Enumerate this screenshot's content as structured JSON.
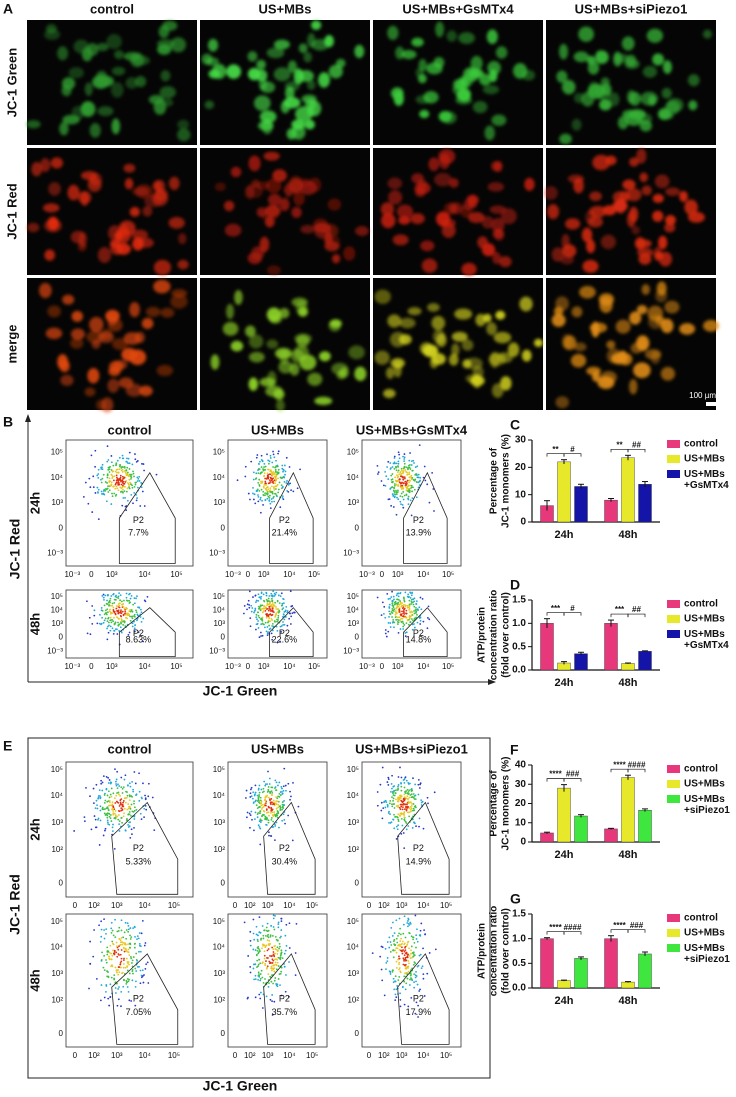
{
  "panel_a": {
    "label": "A",
    "columns": [
      "control",
      "US+MBs",
      "US+MBs+GsMTx4",
      "US+MBs+siPiezo1"
    ],
    "rows": [
      "JC-1 Green",
      "JC-1 Red",
      "merge"
    ],
    "scale_bar": "100 µm"
  },
  "panel_b": {
    "label": "B",
    "columns": [
      "control",
      "US+MBs",
      "US+MBs+GsMTx4"
    ],
    "rows": [
      "24h",
      "48h"
    ],
    "y_axis_label": "JC-1 Red",
    "x_axis_label": "JC-1 Green",
    "y_ticks": [
      "10⁵",
      "10⁴",
      "10³",
      "0",
      "10⁻³"
    ],
    "x_ticks": [
      "10⁻³",
      "0",
      "10³",
      "10⁴",
      "10⁵"
    ],
    "gate": "P2",
    "percentages": [
      [
        "7.7%",
        "21.4%",
        "13.9%"
      ],
      [
        "8.63%",
        "22.6%",
        "14.8%"
      ]
    ]
  },
  "panel_e": {
    "label": "E",
    "columns": [
      "control",
      "US+MBs",
      "US+MBs+siPiezo1"
    ],
    "rows": [
      "24h",
      "48h"
    ],
    "y_axis_label": "JC-1 Red",
    "x_axis_label": "JC-1 Green",
    "y_ticks": [
      "10⁵",
      "10⁴",
      "10³",
      "10²",
      "0"
    ],
    "x_ticks": [
      "0",
      "10²",
      "10³",
      "10⁴",
      "10⁵"
    ],
    "gate": "P2",
    "percentages": [
      [
        "5.33%",
        "30.4%",
        "14.9%"
      ],
      [
        "7.05%",
        "35.7%",
        "17.9%"
      ]
    ]
  },
  "chart_data": [
    {
      "type": "bar",
      "panel_label": "C",
      "y_label": [
        "Percentage of",
        "JC-1 monomers (%)"
      ],
      "categories": [
        "24h",
        "48h"
      ],
      "series": [
        {
          "name": "control",
          "color": "#e6387a",
          "values": [
            6,
            8
          ],
          "errors": [
            1.8,
            0.6
          ]
        },
        {
          "name": "US+MBs",
          "color": "#e8e82a",
          "values": [
            22,
            23.5
          ],
          "errors": [
            0.8,
            0.9
          ]
        },
        {
          "name": "US+MBs +GsMTx4",
          "color": "#1414a8",
          "values": [
            13,
            13.8
          ],
          "errors": [
            0.8,
            1
          ]
        }
      ],
      "annotations": [
        [
          "**",
          "#"
        ],
        [
          "**",
          "##"
        ]
      ],
      "ylim": [
        0,
        30
      ],
      "yticks": [
        0,
        10,
        20,
        30
      ],
      "legend": "right"
    },
    {
      "type": "bar",
      "panel_label": "D",
      "y_label": [
        "ATP/protein",
        "concentration ratio",
        "(fold over control)"
      ],
      "categories": [
        "24h",
        "48h"
      ],
      "series": [
        {
          "name": "control",
          "color": "#e6387a",
          "values": [
            1.0,
            1.0
          ],
          "errors": [
            0.1,
            0.07
          ]
        },
        {
          "name": "US+MBs",
          "color": "#e8e82a",
          "values": [
            0.15,
            0.14
          ],
          "errors": [
            0.03,
            0.01
          ]
        },
        {
          "name": "US+MBs +GsMTx4",
          "color": "#1414a8",
          "values": [
            0.35,
            0.4
          ],
          "errors": [
            0.03,
            0.01
          ]
        }
      ],
      "annotations": [
        [
          "***",
          "#"
        ],
        [
          "***",
          "##"
        ]
      ],
      "ylim": [
        0,
        1.5
      ],
      "yticks": [
        {
          "value": 0,
          "label": "0.0"
        },
        {
          "value": 0.5,
          "label": "0.5"
        },
        {
          "value": 1,
          "label": "1.0"
        },
        {
          "value": 1.5,
          "label": "1.5"
        }
      ],
      "legend": "right"
    },
    {
      "type": "bar",
      "panel_label": "F",
      "y_label": [
        "Percentage of",
        "JC-1 monomers (%)"
      ],
      "categories": [
        "24h",
        "48h"
      ],
      "series": [
        {
          "name": "control",
          "color": "#e6387a",
          "values": [
            4.7,
            6.8
          ],
          "errors": [
            0.4,
            0.3
          ]
        },
        {
          "name": "US+MBs",
          "color": "#e8e82a",
          "values": [
            28,
            33.5
          ],
          "errors": [
            1.8,
            1.2
          ]
        },
        {
          "name": "US+MBs +siPiezo1",
          "color": "#3ee63e",
          "values": [
            13.5,
            16.5
          ],
          "errors": [
            0.7,
            0.7
          ]
        }
      ],
      "annotations": [
        [
          "****",
          "###"
        ],
        [
          "****",
          "####"
        ]
      ],
      "ylim": [
        0,
        40
      ],
      "yticks": [
        0,
        10,
        20,
        30,
        40
      ],
      "legend": "right"
    },
    {
      "type": "bar",
      "panel_label": "G",
      "y_label": [
        "ATP/protein",
        "concentration ratio",
        "(fold over control)"
      ],
      "categories": [
        "24h",
        "48h"
      ],
      "series": [
        {
          "name": "control",
          "color": "#e6387a",
          "values": [
            1.0,
            1.0
          ],
          "errors": [
            0.02,
            0.06
          ]
        },
        {
          "name": "US+MBs",
          "color": "#e8e82a",
          "values": [
            0.15,
            0.12
          ],
          "errors": [
            0.01,
            0.01
          ]
        },
        {
          "name": "US+MBs +siPiezo1",
          "color": "#3ee63e",
          "values": [
            0.6,
            0.69
          ],
          "errors": [
            0.03,
            0.04
          ]
        }
      ],
      "annotations": [
        [
          "****",
          "####"
        ],
        [
          "****",
          "###"
        ]
      ],
      "ylim": [
        0,
        1.5
      ],
      "yticks": [
        {
          "value": 0,
          "label": "0.0"
        },
        {
          "value": 0.5,
          "label": "0.5"
        },
        {
          "value": 1,
          "label": "1.0"
        },
        {
          "value": 1.5,
          "label": "1.5"
        }
      ],
      "legend": "right"
    }
  ]
}
